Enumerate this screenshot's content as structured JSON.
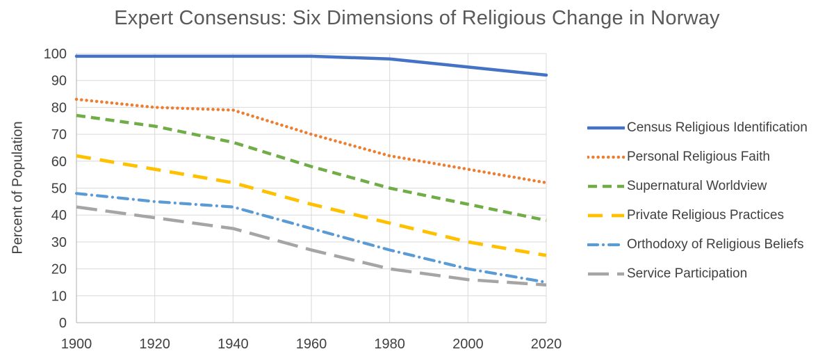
{
  "chart_data": {
    "type": "line",
    "title": "Expert Consensus: Six Dimensions of Religious Change in Norway",
    "xlabel": "",
    "ylabel": "Percent of Population",
    "x": [
      1900,
      1920,
      1940,
      1960,
      1980,
      2000,
      2020
    ],
    "xlim": [
      1900,
      2020
    ],
    "ylim": [
      0,
      100
    ],
    "y_tick_step": 10,
    "grid": true,
    "legend_position": "right",
    "colors": {
      "gridline": "#D9D9D9",
      "axis": "#BFBFBF",
      "text": "#404040",
      "title_text": "#595959"
    },
    "series": [
      {
        "name": "Census Religious Identification",
        "color": "#4472C4",
        "dash": "solid",
        "values": [
          99,
          99,
          99,
          99,
          98,
          95,
          92
        ]
      },
      {
        "name": "Personal Religious Faith",
        "color": "#ED7D31",
        "dash": "dot",
        "values": [
          83,
          80,
          79,
          70,
          62,
          57,
          52
        ]
      },
      {
        "name": "Supernatural Worldview",
        "color": "#70AD47",
        "dash": "dash",
        "values": [
          77,
          73,
          67,
          58,
          50,
          44,
          38
        ]
      },
      {
        "name": "Private Religious Practices",
        "color": "#FFC000",
        "dash": "med-dash",
        "values": [
          62,
          57,
          52,
          44,
          37,
          30,
          25
        ]
      },
      {
        "name": "Orthodoxy of Religious Beliefs",
        "color": "#5B9BD5",
        "dash": "dash-dot",
        "values": [
          48,
          45,
          43,
          35,
          27,
          20,
          15
        ]
      },
      {
        "name": "Service Participation",
        "color": "#A5A5A5",
        "dash": "long-dash",
        "values": [
          43,
          39,
          35,
          27,
          20,
          16,
          14
        ]
      }
    ]
  }
}
